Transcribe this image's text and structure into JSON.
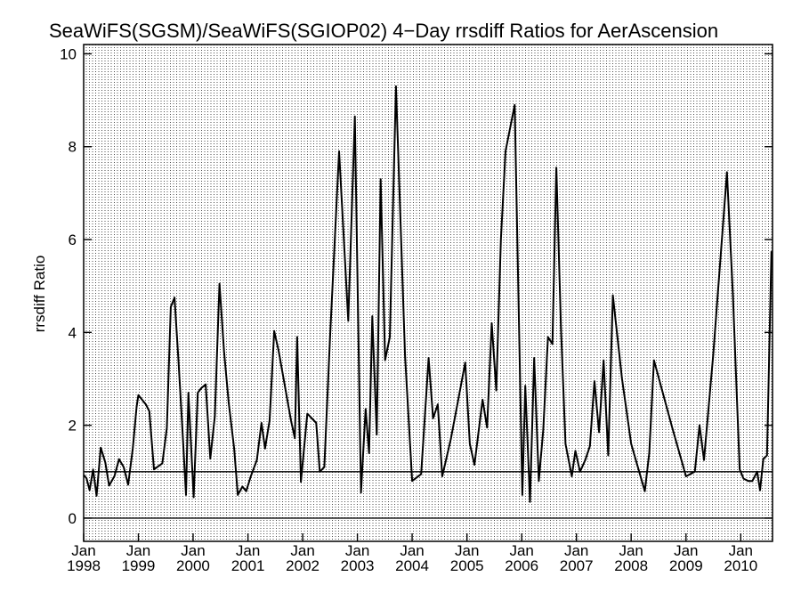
{
  "chart_data": {
    "type": "line",
    "title": "SeaWiFS(SGSM)/SeaWiFS(SGIOP02) 4−Day rrsdiff Ratios for AerAscension",
    "xlabel": "",
    "ylabel": "rrsdiff Ratio",
    "xlim": [
      "1998-01-01",
      "2010-08-01"
    ],
    "ylim": [
      -0.5,
      10.2
    ],
    "yticks": [
      "0",
      "2",
      "4",
      "6",
      "8",
      "10"
    ],
    "xticks": [
      {
        "month": "Jan",
        "year": "1998",
        "date": "1998-01-01"
      },
      {
        "month": "Jan",
        "year": "1999",
        "date": "1999-01-01"
      },
      {
        "month": "Jan",
        "year": "2000",
        "date": "2000-01-01"
      },
      {
        "month": "Jan",
        "year": "2001",
        "date": "2001-01-01"
      },
      {
        "month": "Jan",
        "year": "2002",
        "date": "2002-01-01"
      },
      {
        "month": "Jan",
        "year": "2003",
        "date": "2003-01-01"
      },
      {
        "month": "Jan",
        "year": "2004",
        "date": "2004-01-01"
      },
      {
        "month": "Jan",
        "year": "2005",
        "date": "2005-01-01"
      },
      {
        "month": "Jan",
        "year": "2006",
        "date": "2006-01-01"
      },
      {
        "month": "Jan",
        "year": "2007",
        "date": "2007-01-01"
      },
      {
        "month": "Jan",
        "year": "2008",
        "date": "2008-01-01"
      },
      {
        "month": "Jan",
        "year": "2009",
        "date": "2009-01-01"
      },
      {
        "month": "Jan",
        "year": "2010",
        "date": "2010-01-01"
      }
    ],
    "grid": "dense dotted vertical lines",
    "reference_lines": [
      0,
      1
    ],
    "series": [
      {
        "color": "#000000",
        "points": [
          [
            "1998-01-01",
            0.93
          ],
          [
            "1998-01-20",
            0.86
          ],
          [
            "1998-02-10",
            0.6
          ],
          [
            "1998-03-05",
            1.05
          ],
          [
            "1998-03-28",
            0.48
          ],
          [
            "1998-04-25",
            1.52
          ],
          [
            "1998-05-25",
            1.2
          ],
          [
            "1998-06-20",
            0.7
          ],
          [
            "1998-07-25",
            0.9
          ],
          [
            "1998-08-25",
            1.27
          ],
          [
            "1998-09-25",
            1.1
          ],
          [
            "1998-10-25",
            0.72
          ],
          [
            "1998-11-25",
            1.5
          ],
          [
            "1998-12-20",
            2.4
          ],
          [
            "1999-01-01",
            2.65
          ],
          [
            "1999-02-20",
            2.45
          ],
          [
            "1999-03-15",
            2.3
          ],
          [
            "1999-04-15",
            1.05
          ],
          [
            "1999-06-10",
            1.18
          ],
          [
            "1999-07-10",
            1.95
          ],
          [
            "1999-08-05",
            4.55
          ],
          [
            "1999-08-30",
            4.75
          ],
          [
            "1999-09-25",
            3.4
          ],
          [
            "1999-10-20",
            2.0
          ],
          [
            "1999-11-15",
            0.5
          ],
          [
            "1999-12-01",
            2.7
          ],
          [
            "2000-01-05",
            0.45
          ],
          [
            "2000-02-01",
            2.7
          ],
          [
            "2000-02-25",
            2.8
          ],
          [
            "2000-03-25",
            2.88
          ],
          [
            "2000-04-25",
            1.28
          ],
          [
            "2000-05-25",
            2.2
          ],
          [
            "2000-06-25",
            5.05
          ],
          [
            "2000-07-25",
            3.6
          ],
          [
            "2000-08-25",
            2.5
          ],
          [
            "2000-10-01",
            1.5
          ],
          [
            "2000-10-25",
            0.5
          ],
          [
            "2000-11-25",
            0.68
          ],
          [
            "2000-12-20",
            0.58
          ],
          [
            "2001-01-20",
            0.9
          ],
          [
            "2001-03-01",
            1.25
          ],
          [
            "2001-04-01",
            2.05
          ],
          [
            "2001-04-25",
            1.5
          ],
          [
            "2001-05-25",
            2.1
          ],
          [
            "2001-06-25",
            4.03
          ],
          [
            "2001-07-25",
            3.6
          ],
          [
            "2001-10-15",
            2.1
          ],
          [
            "2001-11-10",
            1.72
          ],
          [
            "2001-11-25",
            3.9
          ],
          [
            "2001-12-20",
            0.78
          ],
          [
            "2002-02-01",
            2.25
          ],
          [
            "2002-04-01",
            2.05
          ],
          [
            "2002-04-25",
            1.0
          ],
          [
            "2002-05-25",
            1.1
          ],
          [
            "2002-07-01",
            3.8
          ],
          [
            "2002-09-01",
            7.9
          ],
          [
            "2002-11-01",
            4.25
          ],
          [
            "2002-12-15",
            8.65
          ],
          [
            "2003-01-25",
            0.55
          ],
          [
            "2003-02-25",
            2.35
          ],
          [
            "2003-03-20",
            1.4
          ],
          [
            "2003-04-10",
            4.35
          ],
          [
            "2003-05-10",
            1.8
          ],
          [
            "2003-06-05",
            7.3
          ],
          [
            "2003-07-05",
            3.4
          ],
          [
            "2003-08-05",
            3.9
          ],
          [
            "2003-09-15",
            9.3
          ],
          [
            "2003-11-15",
            3.5
          ],
          [
            "2004-01-01",
            0.8
          ],
          [
            "2004-03-01",
            0.95
          ],
          [
            "2004-04-20",
            3.45
          ],
          [
            "2004-05-20",
            2.15
          ],
          [
            "2004-06-20",
            2.45
          ],
          [
            "2004-07-20",
            0.9
          ],
          [
            "2004-09-15",
            1.7
          ],
          [
            "2004-11-01",
            2.5
          ],
          [
            "2004-12-20",
            3.35
          ],
          [
            "2005-01-20",
            1.6
          ],
          [
            "2005-02-20",
            1.15
          ],
          [
            "2005-04-15",
            2.55
          ],
          [
            "2005-05-15",
            1.95
          ],
          [
            "2005-06-15",
            4.2
          ],
          [
            "2005-07-15",
            2.75
          ],
          [
            "2005-08-15",
            6.0
          ],
          [
            "2005-09-15",
            7.9
          ],
          [
            "2005-11-15",
            8.9
          ],
          [
            "2006-01-05",
            0.5
          ],
          [
            "2006-01-25",
            2.85
          ],
          [
            "2006-02-25",
            0.35
          ],
          [
            "2006-03-25",
            3.45
          ],
          [
            "2006-04-25",
            0.8
          ],
          [
            "2006-05-25",
            1.9
          ],
          [
            "2006-06-25",
            3.9
          ],
          [
            "2006-07-25",
            3.75
          ],
          [
            "2006-08-20",
            7.55
          ],
          [
            "2006-09-20",
            4.1
          ],
          [
            "2006-10-20",
            1.6
          ],
          [
            "2006-12-01",
            0.9
          ],
          [
            "2006-12-25",
            1.45
          ],
          [
            "2007-01-25",
            1.0
          ],
          [
            "2007-03-01",
            1.25
          ],
          [
            "2007-04-01",
            1.55
          ],
          [
            "2007-05-01",
            2.95
          ],
          [
            "2007-06-01",
            1.85
          ],
          [
            "2007-07-01",
            3.4
          ],
          [
            "2007-08-01",
            1.35
          ],
          [
            "2007-09-01",
            4.8
          ],
          [
            "2007-11-01",
            3.0
          ],
          [
            "2008-01-01",
            1.6
          ],
          [
            "2008-04-01",
            0.58
          ],
          [
            "2008-05-01",
            1.4
          ],
          [
            "2008-06-01",
            3.4
          ],
          [
            "2008-10-01",
            1.95
          ],
          [
            "2009-01-01",
            0.9
          ],
          [
            "2009-03-01",
            1.0
          ],
          [
            "2009-04-01",
            2.0
          ],
          [
            "2009-05-01",
            1.25
          ],
          [
            "2009-07-01",
            3.5
          ],
          [
            "2009-10-01",
            7.45
          ],
          [
            "2009-11-10",
            4.8
          ],
          [
            "2009-12-25",
            1.05
          ],
          [
            "2010-01-20",
            0.85
          ],
          [
            "2010-02-20",
            0.8
          ],
          [
            "2010-03-20",
            0.8
          ],
          [
            "2010-04-20",
            1.0
          ],
          [
            "2010-05-10",
            0.6
          ],
          [
            "2010-06-01",
            1.28
          ],
          [
            "2010-06-25",
            1.35
          ],
          [
            "2010-07-25",
            5.75
          ]
        ]
      }
    ]
  }
}
